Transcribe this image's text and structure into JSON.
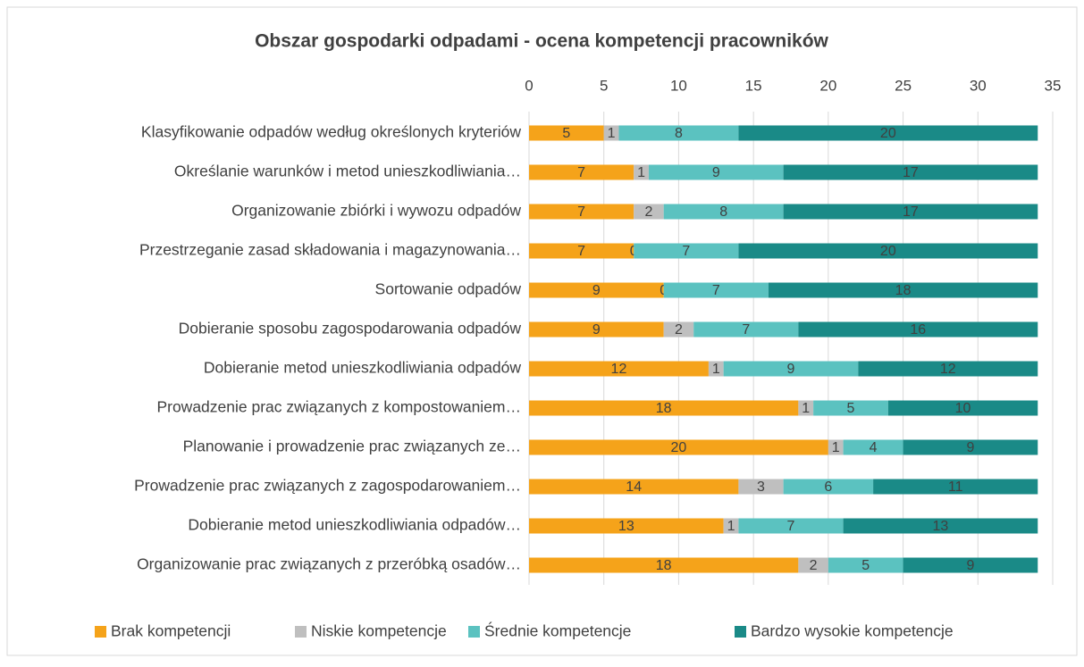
{
  "chart_data": {
    "type": "stacked_bar_horizontal",
    "title": "Obszar gospodarki odpadami - ocena kompetencji pracowników",
    "categories": [
      "Klasyfikowanie odpadów według określonych kryteriów",
      "Określanie warunków i metod unieszkodliwiania…",
      "Organizowanie zbiórki i wywozu odpadów",
      "Przestrzeganie zasad składowania i magazynowania…",
      "Sortowanie odpadów",
      "Dobieranie sposobu zagospodarowania odpadów",
      "Dobieranie metod unieszkodliwiania odpadów",
      "Prowadzenie prac związanych z kompostowaniem…",
      "Planowanie i prowadzenie prac związanych ze…",
      "Prowadzenie prac związanych z zagospodarowaniem…",
      "Dobieranie metod unieszkodliwiania odpadów…",
      "Organizowanie prac związanych z przeróbką osadów…"
    ],
    "series": [
      {
        "name": "Brak kompetencji",
        "color": "#f5a31a",
        "values": [
          5,
          7,
          7,
          7,
          9,
          9,
          12,
          18,
          20,
          14,
          13,
          18
        ]
      },
      {
        "name": "Niskie kompetencje",
        "color": "#bfbfbf",
        "values": [
          1,
          1,
          2,
          0,
          0,
          2,
          1,
          1,
          1,
          3,
          1,
          2
        ]
      },
      {
        "name": "Średnie kompetencje",
        "color": "#5bc2c0",
        "values": [
          8,
          9,
          8,
          7,
          7,
          7,
          9,
          5,
          4,
          6,
          7,
          5
        ]
      },
      {
        "name": "Bardzo wysokie kompetencje",
        "color": "#1a8a87",
        "values": [
          20,
          17,
          17,
          20,
          18,
          16,
          12,
          10,
          9,
          11,
          13,
          9
        ]
      }
    ],
    "xlim": [
      0,
      35
    ],
    "xticks": [
      0,
      5,
      10,
      15,
      20,
      25,
      30,
      35
    ],
    "grid": true,
    "legend": "bottom"
  }
}
